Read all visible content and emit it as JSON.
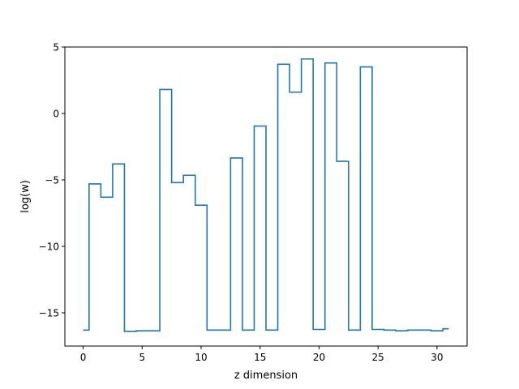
{
  "chart_data": {
    "type": "line",
    "drawstyle": "steps-mid",
    "title": "",
    "xlabel": "z dimension",
    "ylabel": "log(w)",
    "xlim": [
      -1.55,
      32.55
    ],
    "ylim": [
      -17.5,
      5.0
    ],
    "xticks": [
      0,
      5,
      10,
      15,
      20,
      25,
      30
    ],
    "yticks": [
      5,
      0,
      -5,
      -10,
      -15
    ],
    "xtick_labels": [
      "0",
      "5",
      "10",
      "15",
      "20",
      "25",
      "30"
    ],
    "ytick_labels": [
      "5",
      "0",
      "−5",
      "−10",
      "−15"
    ],
    "grid": false,
    "legend": "none",
    "series": [
      {
        "color": "#1f77b4",
        "x": [
          0,
          1,
          2,
          3,
          4,
          5,
          6,
          7,
          8,
          9,
          10,
          11,
          12,
          13,
          14,
          15,
          16,
          17,
          18,
          19,
          20,
          21,
          22,
          23,
          24,
          25,
          26,
          27,
          28,
          29,
          30,
          31
        ],
        "y": [
          -16.3,
          -5.3,
          -6.3,
          -3.8,
          -16.4,
          -16.35,
          -16.35,
          1.8,
          -5.2,
          -4.65,
          -6.9,
          -16.3,
          -16.3,
          -3.35,
          -16.3,
          -0.95,
          -16.3,
          3.7,
          1.6,
          4.1,
          -16.25,
          3.8,
          -3.6,
          -16.3,
          3.5,
          -16.25,
          -16.3,
          -16.35,
          -16.3,
          -16.3,
          -16.35,
          -16.2
        ]
      }
    ]
  }
}
